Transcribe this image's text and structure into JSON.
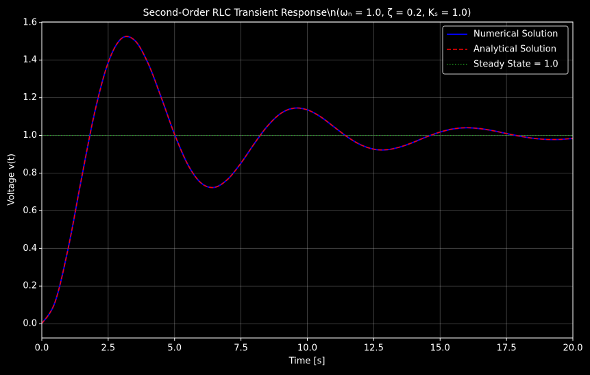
{
  "chart_data": {
    "type": "line",
    "title": "Second-Order RLC Transient Response\\n(ωₙ = 1.0, ζ = 0.2, Kₛ = 1.0)",
    "xlabel": "Time [s]",
    "ylabel": "Voltage v(t)",
    "x": [
      0,
      0.5,
      1,
      1.5,
      2,
      2.5,
      3,
      3.5,
      4,
      4.5,
      5,
      5.5,
      6,
      6.5,
      7,
      7.5,
      8,
      8.5,
      9,
      9.5,
      10,
      10.5,
      11,
      11.5,
      12,
      12.5,
      13,
      13.5,
      14,
      14.5,
      15,
      15.5,
      16,
      16.5,
      17,
      17.5,
      18,
      18.5,
      19,
      19.5,
      20
    ],
    "series": [
      {
        "name": "Numerical Solution",
        "color": "#0000ff",
        "style": "solid",
        "values": [
          0,
          0.115,
          0.405,
          0.775,
          1.128,
          1.387,
          1.515,
          1.505,
          1.384,
          1.201,
          1.006,
          0.845,
          0.747,
          0.724,
          0.767,
          0.853,
          0.956,
          1.05,
          1.117,
          1.145,
          1.136,
          1.099,
          1.046,
          0.993,
          0.951,
          0.927,
          0.924,
          0.939,
          0.964,
          0.993,
          1.018,
          1.035,
          1.041,
          1.036,
          1.025,
          1.01,
          0.996,
          0.985,
          0.979,
          0.979,
          0.984
        ]
      },
      {
        "name": "Analytical Solution",
        "color": "#ff0000",
        "style": "dashed",
        "values": [
          0,
          0.115,
          0.405,
          0.775,
          1.128,
          1.387,
          1.515,
          1.505,
          1.384,
          1.201,
          1.006,
          0.845,
          0.747,
          0.724,
          0.767,
          0.853,
          0.956,
          1.05,
          1.117,
          1.145,
          1.136,
          1.099,
          1.046,
          0.993,
          0.951,
          0.927,
          0.924,
          0.939,
          0.964,
          0.993,
          1.018,
          1.035,
          1.041,
          1.036,
          1.025,
          1.01,
          0.996,
          0.985,
          0.979,
          0.979,
          0.984
        ]
      }
    ],
    "hline": {
      "name": "Steady State = 1.0",
      "value": 1.0,
      "color": "#22aa22",
      "style": "dotted"
    },
    "xlim": [
      0,
      20
    ],
    "xticks": [
      {
        "value": 0,
        "label": "0.0"
      },
      2.5,
      {
        "value": 5,
        "label": "5.0"
      },
      7.5,
      {
        "value": 10,
        "label": "10.0"
      },
      12.5,
      {
        "value": 15,
        "label": "15.0"
      },
      17.5,
      {
        "value": 20,
        "label": "20.0"
      }
    ],
    "ylim": [
      -0.076,
      1.603
    ],
    "yticks": [
      {
        "value": 0,
        "label": "0.0"
      },
      0.2,
      0.4,
      0.6,
      0.8,
      {
        "value": 1,
        "label": "1.0"
      },
      1.2,
      1.4,
      1.6
    ],
    "grid": true,
    "legend": "upper right"
  }
}
